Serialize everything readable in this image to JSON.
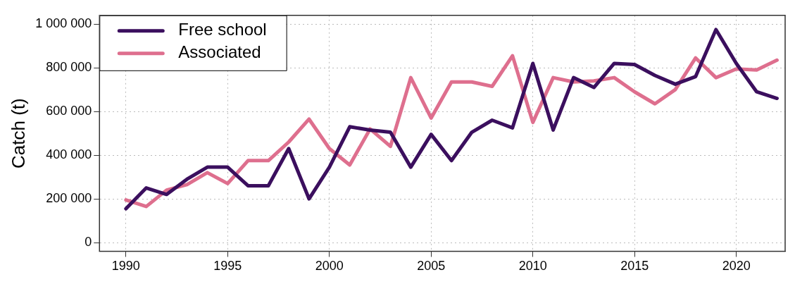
{
  "chart_data": {
    "type": "line",
    "ylabel": "Catch (t)",
    "x": [
      1990,
      1991,
      1992,
      1993,
      1994,
      1995,
      1996,
      1997,
      1998,
      1999,
      2000,
      2001,
      2002,
      2003,
      2004,
      2005,
      2006,
      2007,
      2008,
      2009,
      2010,
      2011,
      2012,
      2013,
      2014,
      2015,
      2016,
      2017,
      2018,
      2019,
      2020,
      2021,
      2022
    ],
    "series": [
      {
        "name": "Free school",
        "color": "#3b0f5e",
        "values": [
          155000,
          250000,
          220000,
          290000,
          345000,
          345000,
          260000,
          260000,
          430000,
          200000,
          345000,
          530000,
          515000,
          505000,
          345000,
          495000,
          375000,
          505000,
          560000,
          525000,
          820000,
          515000,
          755000,
          710000,
          820000,
          815000,
          765000,
          725000,
          760000,
          975000,
          820000,
          690000,
          660000
        ]
      },
      {
        "name": "Associated",
        "color": "#de6f8e",
        "values": [
          195000,
          165000,
          240000,
          265000,
          320000,
          270000,
          375000,
          375000,
          460000,
          565000,
          430000,
          355000,
          520000,
          440000,
          755000,
          570000,
          735000,
          735000,
          715000,
          855000,
          550000,
          755000,
          735000,
          740000,
          755000,
          690000,
          635000,
          700000,
          845000,
          755000,
          795000,
          790000,
          835000
        ]
      }
    ],
    "xlim": [
      1988.7,
      2022.4
    ],
    "xticks": [
      1990,
      1995,
      2000,
      2005,
      2010,
      2015,
      2020
    ],
    "ylim": [
      -40000,
      1040000
    ],
    "yticks": [
      0,
      {
        "value": 200000,
        "label": "200 000"
      },
      {
        "value": 400000,
        "label": "400 000"
      },
      {
        "value": 600000,
        "label": "600 000"
      },
      {
        "value": 800000,
        "label": "800 000"
      },
      {
        "value": 1000000,
        "label": "1 000 000"
      }
    ],
    "grid": true,
    "legend": "top left",
    "line_style": "solid",
    "marker": "none"
  }
}
